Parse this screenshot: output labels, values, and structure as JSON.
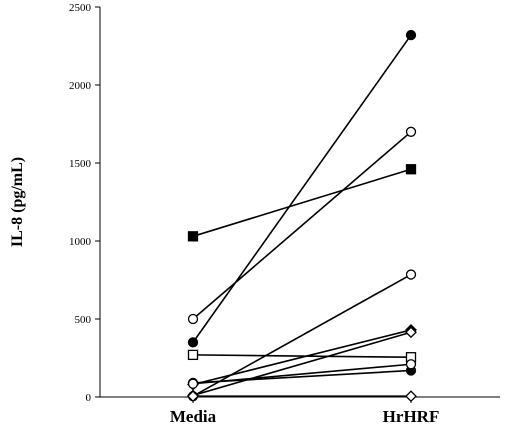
{
  "chart_data": {
    "type": "line",
    "title": "",
    "xlabel": "",
    "ylabel": "IL-8  (pg/mL)",
    "categories": [
      "Media",
      "HrHRF"
    ],
    "ylim": [
      0,
      2500
    ],
    "yticks": [
      0,
      500,
      1000,
      1500,
      2000,
      2500
    ],
    "grid": false,
    "series": [
      {
        "marker": "filled-circle",
        "values": [
          350,
          2320
        ]
      },
      {
        "marker": "open-circle",
        "values": [
          500,
          1700
        ]
      },
      {
        "marker": "filled-square",
        "values": [
          1030,
          1460
        ]
      },
      {
        "marker": "open-circle",
        "values": [
          5,
          785
        ]
      },
      {
        "marker": "filled-diamond",
        "values": [
          80,
          430
        ]
      },
      {
        "marker": "open-square",
        "values": [
          270,
          255
        ]
      },
      {
        "marker": "open-diamond",
        "values": [
          10,
          415
        ]
      },
      {
        "marker": "filled-circle",
        "values": [
          90,
          170
        ]
      },
      {
        "marker": "open-circle",
        "values": [
          85,
          210
        ]
      },
      {
        "marker": "open-diamond",
        "values": [
          5,
          5
        ]
      }
    ]
  }
}
